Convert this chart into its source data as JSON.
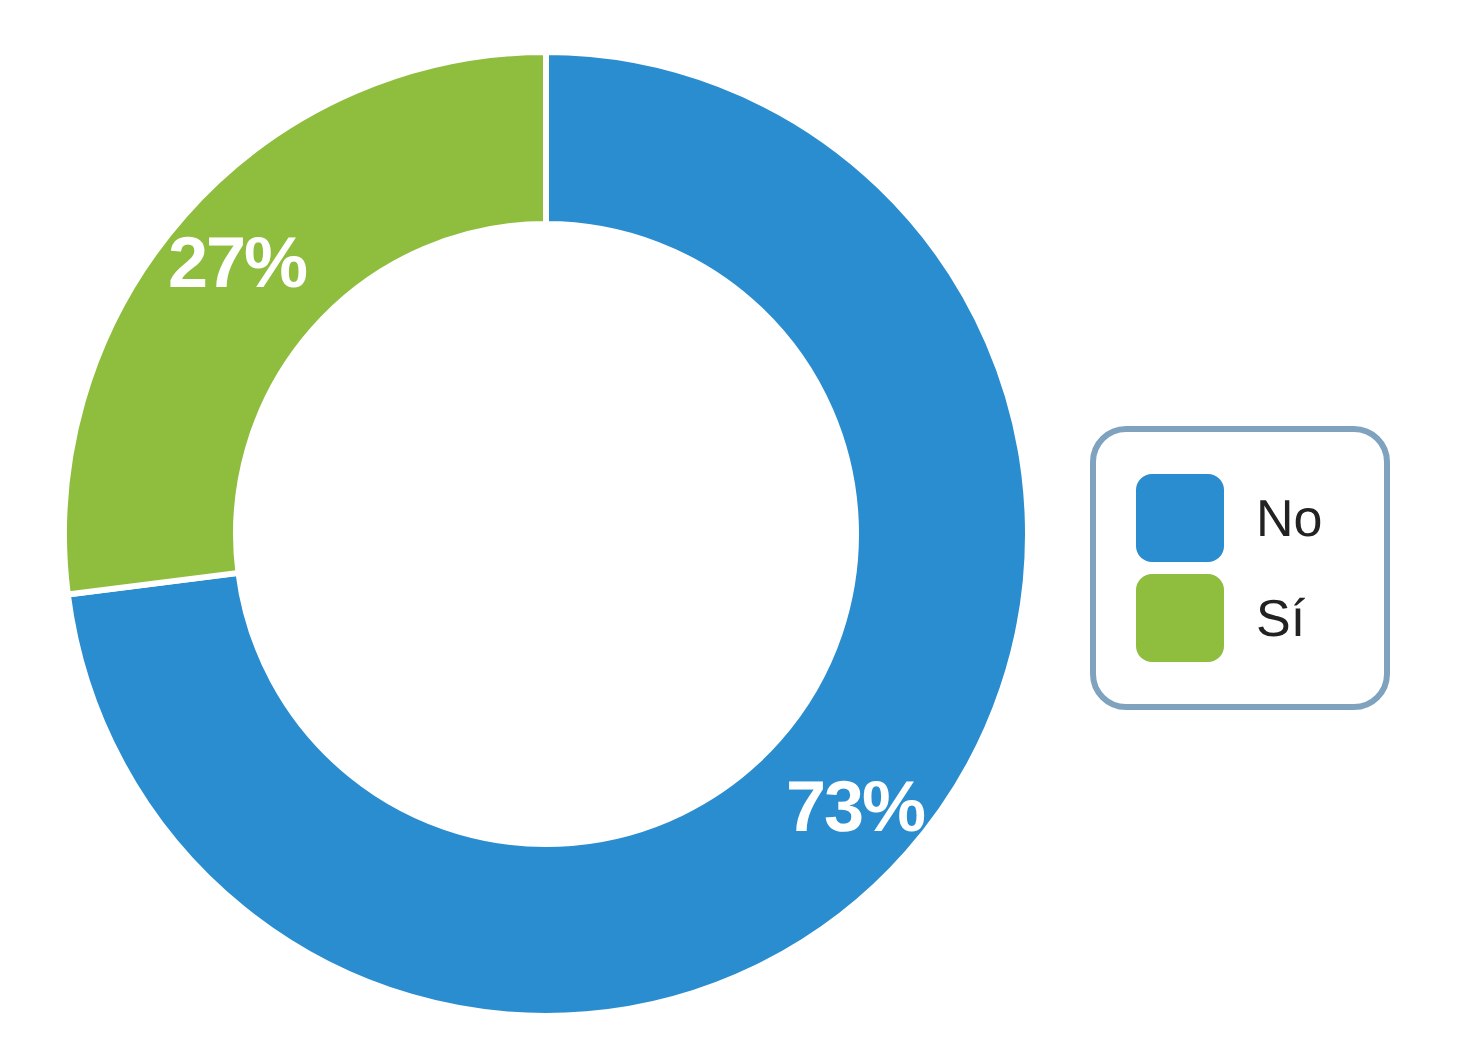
{
  "chart_data": {
    "type": "donut",
    "categories": [
      "No",
      "Sí"
    ],
    "values": [
      73,
      27
    ],
    "colors": [
      "#2a8dcf",
      "#8fbe3f"
    ],
    "value_labels": [
      "73%",
      "27%"
    ],
    "legend": "right"
  }
}
